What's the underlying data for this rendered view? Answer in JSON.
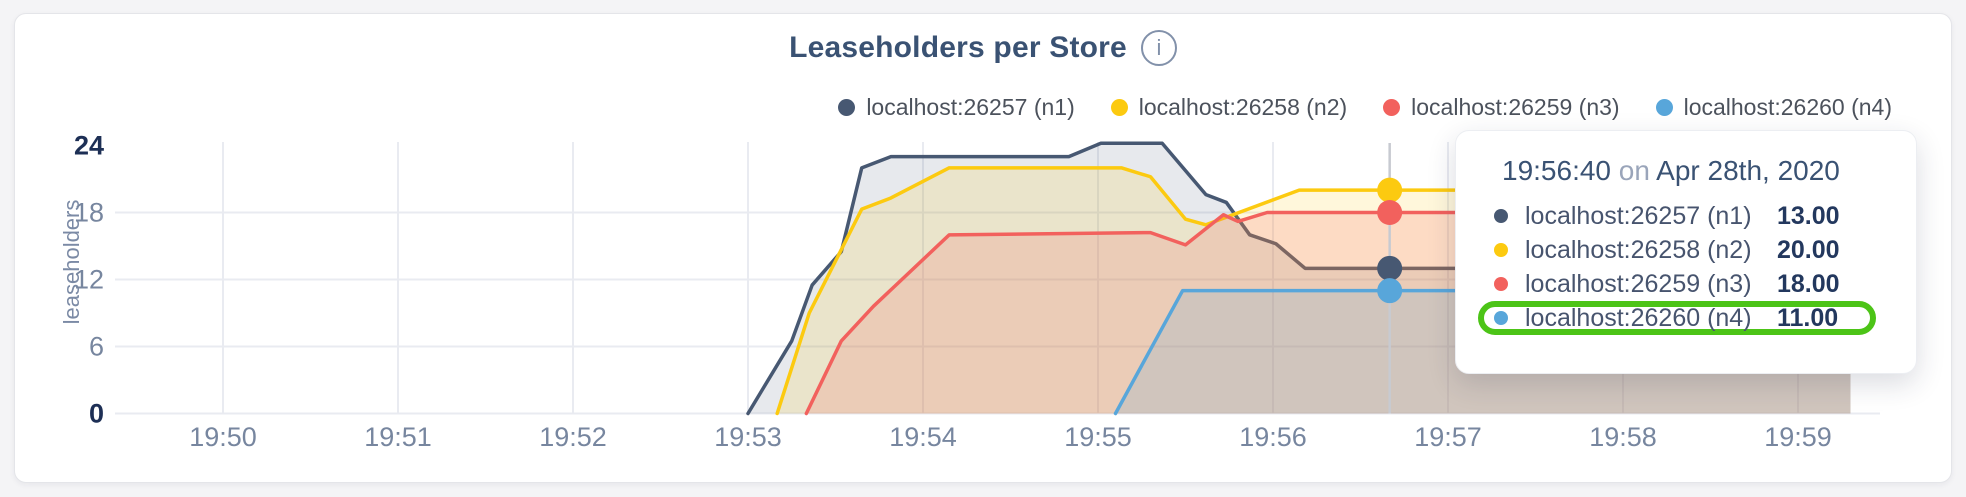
{
  "chart": {
    "title": "Leaseholders per Store",
    "ylabel": "leaseholders"
  },
  "icons": {
    "info": "i"
  },
  "chart_data": {
    "type": "area",
    "title": "Leaseholders per Store",
    "xlabel": "",
    "ylabel": "leaseholders",
    "x_unit": "seconds after 19:50:00 on Apr 28th, 2020",
    "x_ticks": [
      "19:50",
      "19:51",
      "19:52",
      "19:53",
      "19:54",
      "19:55",
      "19:56",
      "19:57",
      "19:58",
      "19:59"
    ],
    "x_tick_seconds": [
      0,
      60,
      120,
      180,
      240,
      300,
      360,
      420,
      480,
      540
    ],
    "y_ticks": [
      0,
      6,
      12,
      18,
      24
    ],
    "ylim": [
      0,
      26.5
    ],
    "grid": true,
    "legend_position": "top-right",
    "series": [
      {
        "name": "localhost:26257 (n1)",
        "color": "#475872",
        "fill_opacity": 0.13,
        "points": [
          [
            180,
            0
          ],
          [
            195,
            6.5
          ],
          [
            202,
            11.5
          ],
          [
            212,
            14.5
          ],
          [
            219,
            22
          ],
          [
            229,
            23
          ],
          [
            290,
            23
          ],
          [
            301,
            24.2
          ],
          [
            322,
            24.2
          ],
          [
            337,
            19.6
          ],
          [
            344,
            18.9
          ],
          [
            352,
            16
          ],
          [
            361,
            15.2
          ],
          [
            371,
            13
          ],
          [
            558,
            13
          ]
        ]
      },
      {
        "name": "localhost:26258 (n2)",
        "color": "#fcca10",
        "fill_opacity": 0.15,
        "points": [
          [
            190,
            0
          ],
          [
            201,
            9
          ],
          [
            219,
            18.3
          ],
          [
            229,
            19.3
          ],
          [
            249,
            22
          ],
          [
            308,
            22
          ],
          [
            318,
            21.2
          ],
          [
            330,
            17.4
          ],
          [
            337,
            16.9
          ],
          [
            369,
            20
          ],
          [
            558,
            20
          ]
        ]
      },
      {
        "name": "localhost:26259 (n3)",
        "color": "#f2615d",
        "fill_opacity": 0.18,
        "points": [
          [
            200,
            0
          ],
          [
            212,
            6.5
          ],
          [
            223,
            9.6
          ],
          [
            249,
            16
          ],
          [
            318,
            16.2
          ],
          [
            330,
            15.1
          ],
          [
            343,
            17.8
          ],
          [
            348,
            17.2
          ],
          [
            358,
            18
          ],
          [
            558,
            18
          ]
        ]
      },
      {
        "name": "localhost:26260 (n4)",
        "color": "#58a6da",
        "fill_opacity": 0.18,
        "points": [
          [
            306,
            0
          ],
          [
            329,
            11
          ],
          [
            558,
            11
          ]
        ]
      }
    ],
    "hover": {
      "t": 400,
      "time": "19:56:40",
      "values": [
        13,
        20,
        18,
        11
      ]
    }
  },
  "tooltip": {
    "time": "19:56:40",
    "connector": "on",
    "date": "Apr 28th, 2020",
    "rows": [
      {
        "label": "localhost:26257 (n1)",
        "value": "13.00",
        "color": "#475872"
      },
      {
        "label": "localhost:26258 (n2)",
        "value": "20.00",
        "color": "#fcca10"
      },
      {
        "label": "localhost:26259 (n3)",
        "value": "18.00",
        "color": "#f2615d"
      },
      {
        "label": "localhost:26260 (n4)",
        "value": "11.00",
        "color": "#58a6da"
      }
    ],
    "highlight_row_index": 3,
    "highlight_color": "#4CC417"
  },
  "colors": {
    "page_bg": "#f4f4f6",
    "card_bg": "#ffffff",
    "title": "#3a5273",
    "tick_gray": "#77869f",
    "tick_bold": "#1d2f55",
    "gridline": "#e9ebf1",
    "hover_line": "#c7cad1",
    "annotation_green": "#4CC417"
  }
}
